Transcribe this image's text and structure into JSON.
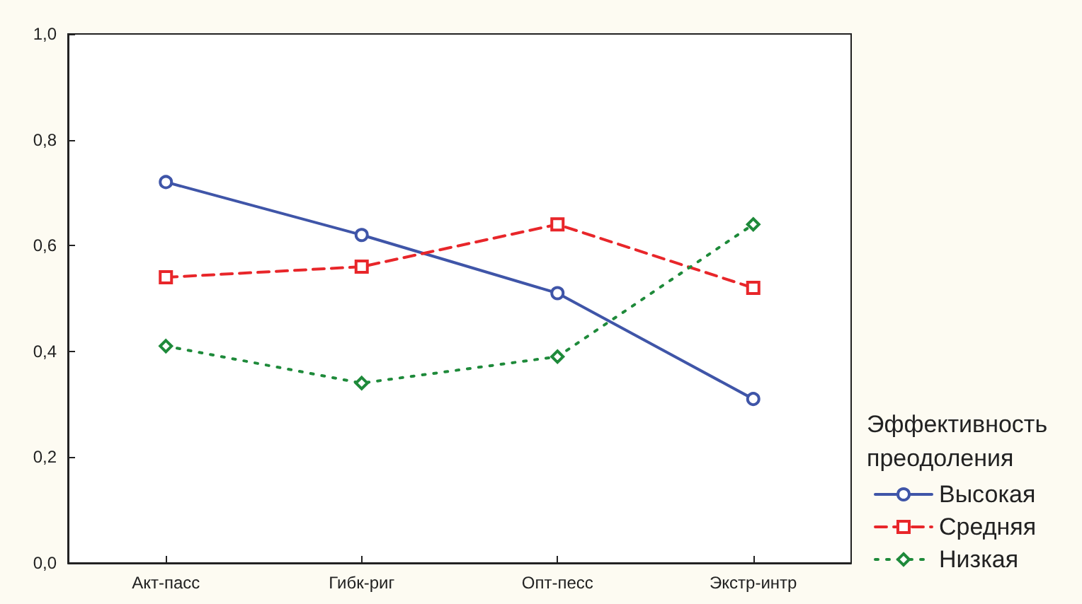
{
  "chart_data": {
    "type": "line",
    "categories": [
      "Акт-пасс",
      "Гибк-риг",
      "Опт-песс",
      "Экстр-интр"
    ],
    "legend_title": "Эффективность преодоления",
    "series": [
      {
        "name": "Высокая",
        "color": "#3f55a8",
        "values": [
          0.72,
          0.62,
          0.51,
          0.31
        ],
        "marker": "circle",
        "line_style": "solid"
      },
      {
        "name": "Средняя",
        "color": "#e8262a",
        "values": [
          0.54,
          0.56,
          0.64,
          0.52
        ],
        "marker": "square",
        "line_style": "dashed"
      },
      {
        "name": "Низкая",
        "color": "#1e8a3a",
        "values": [
          0.41,
          0.34,
          0.39,
          0.64
        ],
        "marker": "diamond",
        "line_style": "dotted"
      }
    ],
    "ylim": [
      0,
      1
    ],
    "yticks": [
      {
        "value": 0,
        "label": "0,0"
      },
      {
        "value": 0.2,
        "label": "0,2"
      },
      {
        "value": 0.4,
        "label": "0,4"
      },
      {
        "value": 0.6,
        "label": "0,6"
      },
      {
        "value": 0.8,
        "label": "0,8"
      },
      {
        "value": 1,
        "label": "1,0"
      }
    ],
    "grid": false,
    "legend": "bottom right"
  }
}
